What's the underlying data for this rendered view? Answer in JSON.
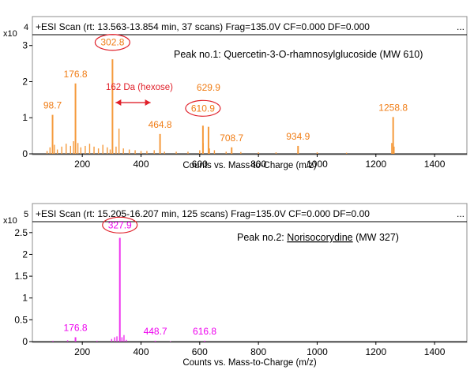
{
  "chart_data": [
    {
      "type": "bar",
      "header": "+ESI Scan (rt: 13.563-13.854 min, 37 scans) Frag=135.0V CF=0.000 DF=0.000",
      "ellipsis": "...",
      "y_multiplier": "x10",
      "y_exponent": "4",
      "xlabel": "Counts vs. Mass-to-Charge (m/z)",
      "ylabel": "",
      "xlim": [
        30,
        1510
      ],
      "ylim": [
        0,
        3.3
      ],
      "xticks": [
        200,
        400,
        600,
        800,
        1000,
        1200,
        1400
      ],
      "yticks": [
        0,
        1,
        2,
        3
      ],
      "color": "#f59a3c",
      "label_color": "#f07d16",
      "circle_color": "#e0202a",
      "note": {
        "prefix": "Peak no.1: ",
        "text": "Quercetin-3-O-rhamnosylglucoside (MW 610)"
      },
      "annotation": {
        "text": "162 Da (hexose)",
        "from_mz": 302.8,
        "to_mz": 464.8,
        "color": "#e0202a"
      },
      "peaks": [
        {
          "mz": 98.7,
          "y": 1.08,
          "label": "98.7",
          "circled": false
        },
        {
          "mz": 176.8,
          "y": 1.95,
          "label": "176.8",
          "circled": false
        },
        {
          "mz": 302.8,
          "y": 2.62,
          "label": "302.8",
          "circled": true
        },
        {
          "mz": 464.8,
          "y": 0.55,
          "label": "464.8",
          "circled": false
        },
        {
          "mz": 610.9,
          "y": 0.78,
          "label": "610.9",
          "circled": true
        },
        {
          "mz": 629.9,
          "y": 0.75,
          "label": "629.9",
          "circled": false
        },
        {
          "mz": 708.7,
          "y": 0.18,
          "label": "708.7",
          "circled": false
        },
        {
          "mz": 934.9,
          "y": 0.22,
          "label": "934.9",
          "circled": false
        },
        {
          "mz": 1258.8,
          "y": 1.02,
          "label": "1258.8",
          "circled": false
        }
      ],
      "minor_peaks": [
        {
          "mz": 80,
          "y": 0.08
        },
        {
          "mz": 90,
          "y": 0.18
        },
        {
          "mz": 105,
          "y": 0.25
        },
        {
          "mz": 115,
          "y": 0.12
        },
        {
          "mz": 130,
          "y": 0.2
        },
        {
          "mz": 145,
          "y": 0.28
        },
        {
          "mz": 160,
          "y": 0.22
        },
        {
          "mz": 170,
          "y": 0.35
        },
        {
          "mz": 185,
          "y": 0.3
        },
        {
          "mz": 195,
          "y": 0.18
        },
        {
          "mz": 210,
          "y": 0.22
        },
        {
          "mz": 225,
          "y": 0.28
        },
        {
          "mz": 240,
          "y": 0.2
        },
        {
          "mz": 255,
          "y": 0.15
        },
        {
          "mz": 270,
          "y": 0.25
        },
        {
          "mz": 285,
          "y": 0.18
        },
        {
          "mz": 295,
          "y": 0.12
        },
        {
          "mz": 315,
          "y": 0.2
        },
        {
          "mz": 325,
          "y": 0.7
        },
        {
          "mz": 340,
          "y": 0.15
        },
        {
          "mz": 360,
          "y": 0.12
        },
        {
          "mz": 380,
          "y": 0.1
        },
        {
          "mz": 400,
          "y": 0.08
        },
        {
          "mz": 420,
          "y": 0.08
        },
        {
          "mz": 445,
          "y": 0.1
        },
        {
          "mz": 480,
          "y": 0.06
        },
        {
          "mz": 520,
          "y": 0.06
        },
        {
          "mz": 560,
          "y": 0.06
        },
        {
          "mz": 600,
          "y": 0.1
        },
        {
          "mz": 612,
          "y": 0.3
        },
        {
          "mz": 633,
          "y": 0.15
        },
        {
          "mz": 650,
          "y": 0.1
        },
        {
          "mz": 690,
          "y": 0.06
        },
        {
          "mz": 740,
          "y": 0.05
        },
        {
          "mz": 800,
          "y": 0.04
        },
        {
          "mz": 860,
          "y": 0.04
        },
        {
          "mz": 1000,
          "y": 0.04
        },
        {
          "mz": 1100,
          "y": 0.03
        },
        {
          "mz": 1254,
          "y": 0.3
        },
        {
          "mz": 1262,
          "y": 0.2
        }
      ]
    },
    {
      "type": "bar",
      "header": "+ESI Scan (rt: 15.205-16.207 min, 125 scans) Frag=135.0V CF=0.000 DF=0.00",
      "ellipsis": "...",
      "y_multiplier": "x10",
      "y_exponent": "5",
      "xlabel": "Counts vs. Mass-to-Charge (m/z)",
      "ylabel": "",
      "xlim": [
        30,
        1510
      ],
      "ylim": [
        0,
        2.75
      ],
      "xticks": [
        200,
        400,
        600,
        800,
        1000,
        1200,
        1400
      ],
      "yticks": [
        0,
        0.5,
        1,
        1.5,
        2,
        2.5
      ],
      "ytick_labels": [
        "0",
        "0.5",
        "1",
        "1.5",
        "2",
        "2.5"
      ],
      "color": "#ee33ee",
      "label_color": "#ee00ee",
      "circle_color": "#e0202a",
      "note": {
        "prefix": "Peak no.2: ",
        "text": "Norisocorydine",
        "suffix": " (MW 327)"
      },
      "peaks": [
        {
          "mz": 176.8,
          "y": 0.1,
          "label": "176.8",
          "circled": false
        },
        {
          "mz": 327.9,
          "y": 2.38,
          "label": "327.9",
          "circled": true
        },
        {
          "mz": 448.7,
          "y": 0.02,
          "label": "448.7",
          "circled": false
        },
        {
          "mz": 616.8,
          "y": 0.02,
          "label": "616.8",
          "circled": false
        }
      ],
      "minor_peaks": [
        {
          "mz": 100,
          "y": 0.02
        },
        {
          "mz": 150,
          "y": 0.03
        },
        {
          "mz": 300,
          "y": 0.06
        },
        {
          "mz": 310,
          "y": 0.1
        },
        {
          "mz": 318,
          "y": 0.12
        },
        {
          "mz": 335,
          "y": 0.1
        },
        {
          "mz": 342,
          "y": 0.15
        },
        {
          "mz": 350,
          "y": 0.04
        },
        {
          "mz": 250,
          "y": 0.02
        },
        {
          "mz": 500,
          "y": 0.01
        }
      ]
    }
  ]
}
